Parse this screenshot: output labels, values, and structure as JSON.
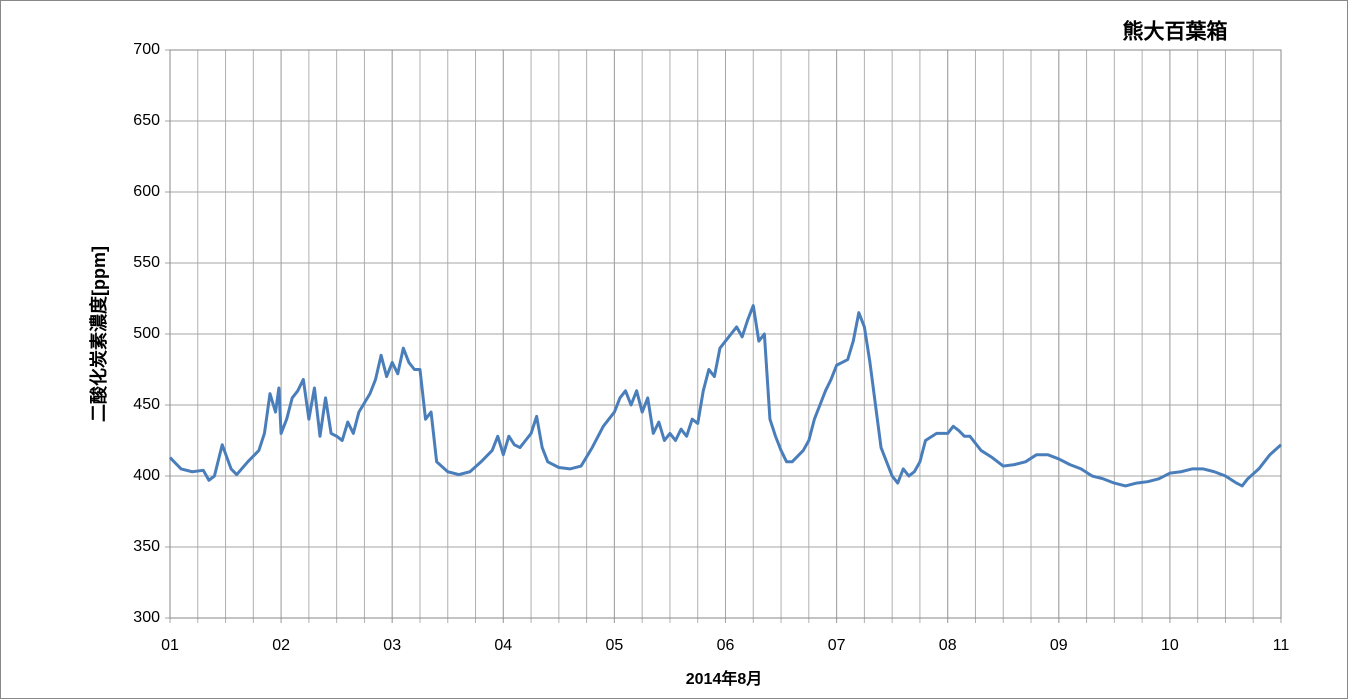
{
  "chart_data": {
    "type": "line",
    "title": "熊大百葉箱",
    "xlabel": "2014年8月",
    "ylabel": "二酸化炭素濃度[ppm]",
    "x": [
      1,
      1.1,
      1.2,
      1.3,
      1.35,
      1.4,
      1.47,
      1.55,
      1.6,
      1.7,
      1.8,
      1.85,
      1.9,
      1.95,
      1.98,
      2,
      2.05,
      2.1,
      2.15,
      2.2,
      2.25,
      2.3,
      2.35,
      2.4,
      2.45,
      2.5,
      2.55,
      2.6,
      2.65,
      2.7,
      2.8,
      2.85,
      2.9,
      2.95,
      3,
      3.05,
      3.1,
      3.15,
      3.2,
      3.25,
      3.3,
      3.35,
      3.4,
      3.5,
      3.6,
      3.7,
      3.8,
      3.9,
      3.95,
      4,
      4.05,
      4.1,
      4.15,
      4.2,
      4.25,
      4.3,
      4.35,
      4.4,
      4.5,
      4.6,
      4.7,
      4.8,
      4.9,
      5,
      5.05,
      5.1,
      5.15,
      5.2,
      5.25,
      5.3,
      5.35,
      5.4,
      5.45,
      5.5,
      5.55,
      5.6,
      5.65,
      5.7,
      5.75,
      5.8,
      5.85,
      5.9,
      5.95,
      6,
      6.05,
      6.1,
      6.15,
      6.2,
      6.25,
      6.3,
      6.35,
      6.4,
      6.45,
      6.5,
      6.55,
      6.6,
      6.7,
      6.75,
      6.8,
      6.85,
      6.9,
      6.95,
      7,
      7.05,
      7.1,
      7.15,
      7.2,
      7.25,
      7.3,
      7.35,
      7.4,
      7.45,
      7.5,
      7.55,
      7.6,
      7.65,
      7.7,
      7.75,
      7.8,
      7.9,
      8,
      8.05,
      8.1,
      8.15,
      8.2,
      8.3,
      8.4,
      8.5,
      8.6,
      8.7,
      8.8,
      8.9,
      9,
      9.1,
      9.2,
      9.3,
      9.4,
      9.5,
      9.6,
      9.7,
      9.8,
      9.9,
      10,
      10.1,
      10.2,
      10.3,
      10.4,
      10.5,
      10.6,
      10.65,
      10.7,
      10.8,
      10.9,
      11
    ],
    "series": [
      {
        "color": "#4a7ebb",
        "values": [
          413,
          405,
          403,
          404,
          397,
          400,
          422,
          405,
          401,
          410,
          418,
          430,
          458,
          445,
          462,
          430,
          440,
          455,
          460,
          468,
          440,
          462,
          428,
          455,
          430,
          428,
          425,
          438,
          430,
          445,
          458,
          468,
          485,
          470,
          480,
          472,
          490,
          480,
          475,
          475,
          440,
          445,
          410,
          403,
          401,
          403,
          410,
          418,
          428,
          415,
          428,
          422,
          420,
          425,
          430,
          442,
          420,
          410,
          406,
          405,
          407,
          420,
          435,
          445,
          455,
          460,
          450,
          460,
          445,
          455,
          430,
          438,
          425,
          430,
          425,
          433,
          428,
          440,
          437,
          460,
          475,
          470,
          490,
          495,
          500,
          505,
          498,
          510,
          520,
          495,
          500,
          440,
          428,
          418,
          410,
          410,
          418,
          425,
          440,
          450,
          460,
          468,
          478,
          480,
          482,
          495,
          515,
          505,
          480,
          450,
          420,
          410,
          400,
          395,
          405,
          400,
          403,
          410,
          425,
          430,
          430,
          435,
          432,
          428,
          428,
          418,
          413,
          407,
          408,
          410,
          415,
          415,
          412,
          408,
          405,
          400,
          398,
          395,
          393,
          395,
          396,
          398,
          402,
          403,
          405,
          405,
          403,
          400,
          395,
          393,
          398,
          405,
          415,
          422
        ]
      }
    ],
    "xlim": [
      1,
      11
    ],
    "xticks": [
      {
        "value": 1,
        "label": "01"
      },
      {
        "value": 2,
        "label": "02"
      },
      {
        "value": 3,
        "label": "03"
      },
      {
        "value": 4,
        "label": "04"
      },
      {
        "value": 5,
        "label": "05"
      },
      {
        "value": 6,
        "label": "06"
      },
      {
        "value": 7,
        "label": "07"
      },
      {
        "value": 8,
        "label": "08"
      },
      {
        "value": 9,
        "label": "09"
      },
      {
        "value": 10,
        "label": "10"
      },
      {
        "value": 11,
        "label": "11"
      }
    ],
    "xgrid_minor": 0.25,
    "ylim": [
      300,
      700
    ],
    "yticks": [
      300,
      350,
      400,
      450,
      500,
      550,
      600,
      650,
      700
    ],
    "grid": true
  }
}
